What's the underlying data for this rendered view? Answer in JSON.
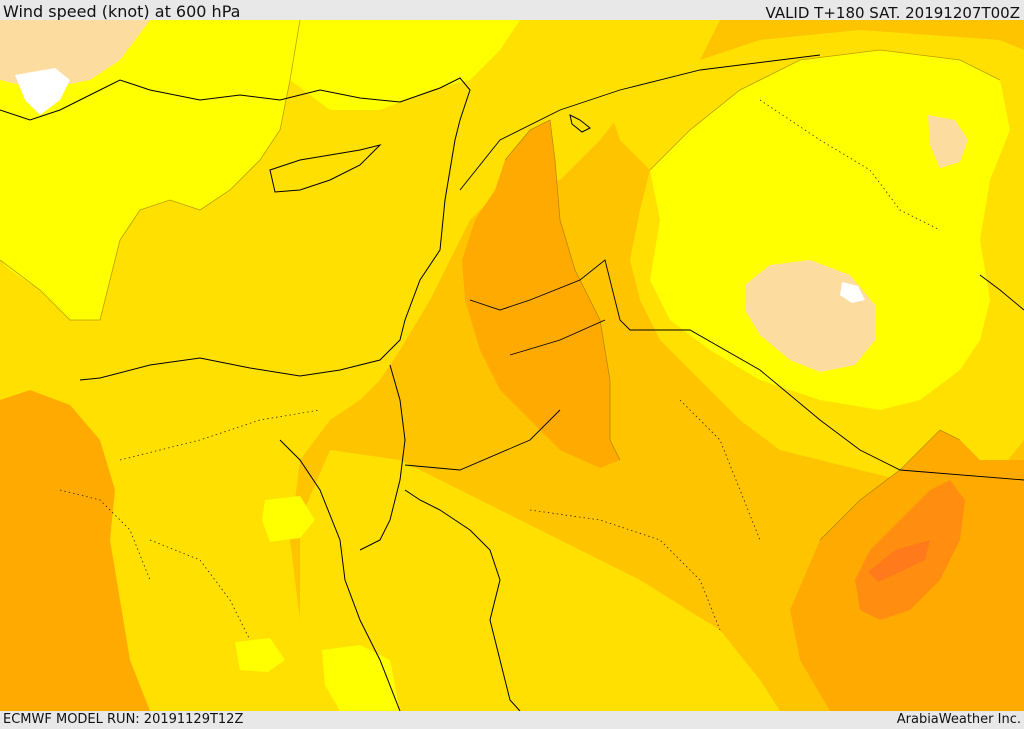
{
  "header": {
    "title": "Wind speed (knot) at 600 hPa",
    "valid": "VALID T+180 SAT. 20191207T00Z"
  },
  "footer": {
    "model_run": "ECMWF MODEL RUN: 20191129T12Z",
    "brand": "ArabiaWeather Inc."
  },
  "map": {
    "variable": "wind speed",
    "level": "600 hPa",
    "colors": {
      "light_peach": "#fddca0",
      "yellow": "#ffff00",
      "gold": "#ffe000",
      "amber": "#ffc400",
      "orange": "#ffaa00",
      "dark_orange": "#ff8e10",
      "deep_orange": "#ff7a1a",
      "land_white": "#ffffff",
      "borders": "#000000"
    }
  }
}
